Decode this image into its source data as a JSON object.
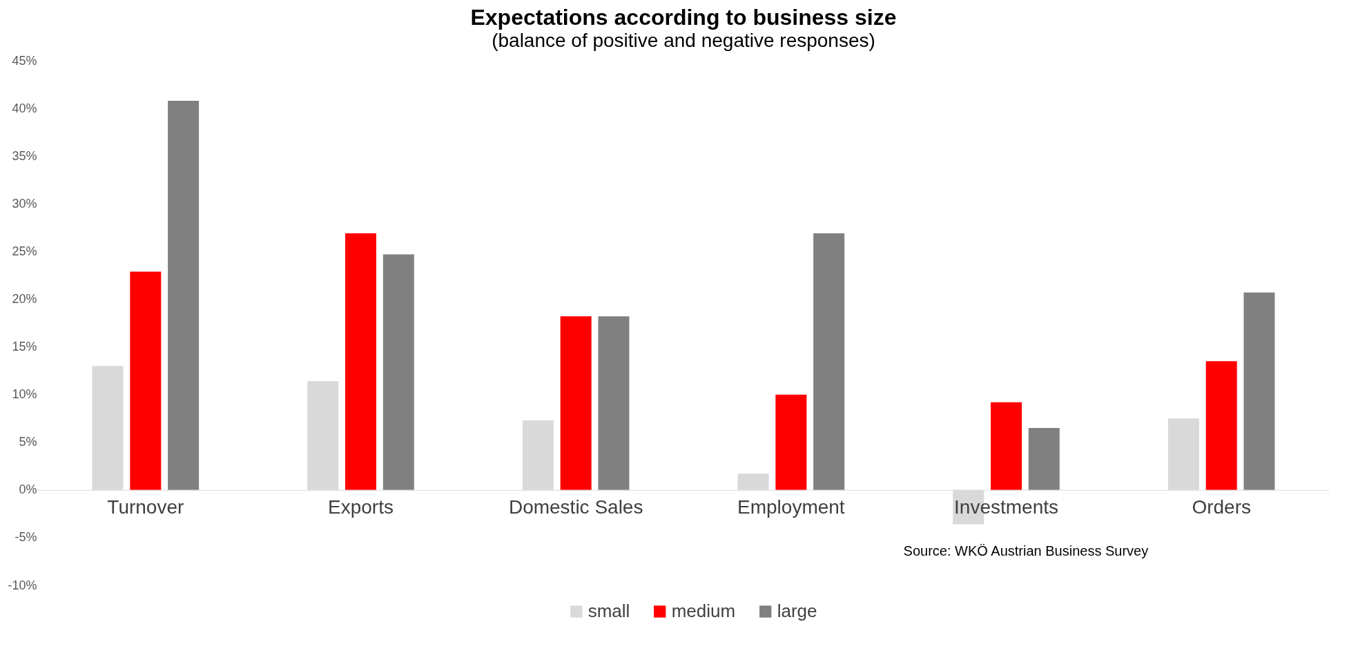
{
  "chart_data": {
    "type": "bar",
    "title": "Expectations according to business size",
    "subtitle": "(balance of positive and negative responses)",
    "categories": [
      "Turnover",
      "Exports",
      "Domestic Sales",
      "Employment",
      "Investments",
      "Orders"
    ],
    "series": [
      {
        "name": "small",
        "color": "#d9d9d9",
        "values": [
          13.0,
          11.4,
          7.3,
          1.7,
          -3.6,
          7.5
        ]
      },
      {
        "name": "medium",
        "color": "#ff0000",
        "values": [
          22.9,
          26.9,
          18.2,
          10.0,
          9.2,
          13.5
        ]
      },
      {
        "name": "large",
        "color": "#808080",
        "values": [
          40.8,
          24.7,
          18.2,
          26.9,
          6.5,
          20.7
        ]
      }
    ],
    "ylim": [
      -10,
      45
    ],
    "yticks": [
      {
        "value": -10,
        "label": "-10%"
      },
      {
        "value": -5,
        "label": "-5%"
      },
      {
        "value": 0,
        "label": "0%"
      },
      {
        "value": 5,
        "label": "5%"
      },
      {
        "value": 10,
        "label": "10%"
      },
      {
        "value": 15,
        "label": "15%"
      },
      {
        "value": 20,
        "label": "20%"
      },
      {
        "value": 25,
        "label": "25%"
      },
      {
        "value": 30,
        "label": "30%"
      },
      {
        "value": 35,
        "label": "35%"
      },
      {
        "value": 40,
        "label": "40%"
      },
      {
        "value": 45,
        "label": "45%"
      }
    ],
    "annotations": [
      "Source: WKÖ Austrian Business Survey"
    ],
    "legend": "bottom",
    "grid": false
  }
}
